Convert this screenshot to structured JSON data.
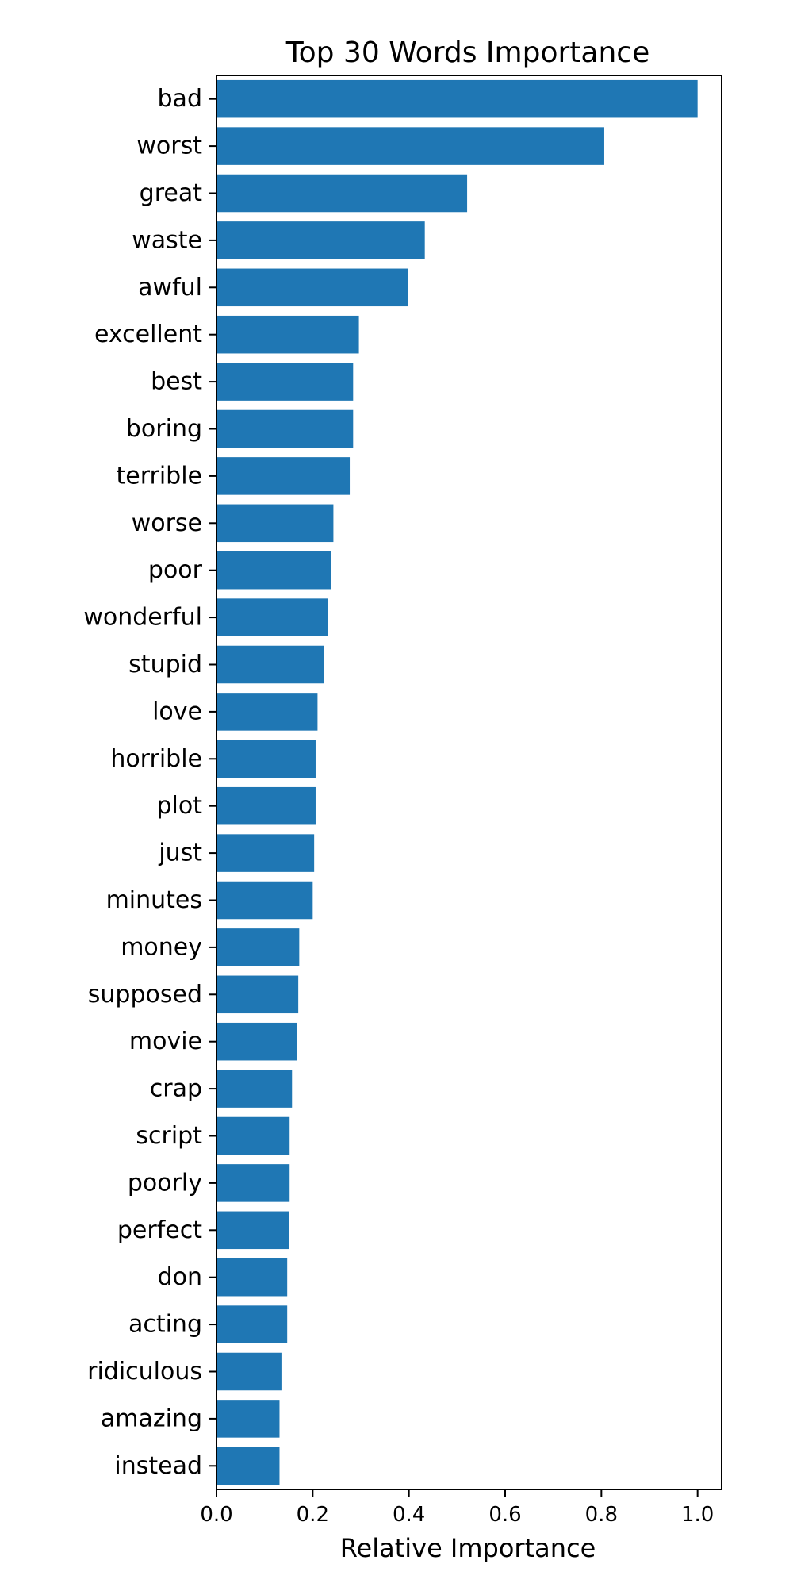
{
  "chart_data": {
    "type": "bar",
    "orientation": "horizontal",
    "title": "Top 30 Words Importance",
    "xlabel": "Relative Importance",
    "ylabel": "",
    "xlim": [
      0,
      1.05
    ],
    "xticks": [
      0.0,
      0.2,
      0.4,
      0.6,
      0.8,
      1.0
    ],
    "xtick_labels": [
      "0.0",
      "0.2",
      "0.4",
      "0.6",
      "0.8",
      "1.0"
    ],
    "grid": false,
    "bar_color": "#1f77b4",
    "categories": [
      "bad",
      "worst",
      "great",
      "waste",
      "awful",
      "excellent",
      "best",
      "boring",
      "terrible",
      "worse",
      "poor",
      "wonderful",
      "stupid",
      "love",
      "horrible",
      "plot",
      "just",
      "minutes",
      "money",
      "supposed",
      "movie",
      "crap",
      "script",
      "poorly",
      "perfect",
      "don",
      "acting",
      "ridiculous",
      "amazing",
      "instead"
    ],
    "values": [
      1.0,
      0.806,
      0.521,
      0.433,
      0.398,
      0.296,
      0.284,
      0.284,
      0.277,
      0.243,
      0.238,
      0.232,
      0.223,
      0.21,
      0.206,
      0.206,
      0.203,
      0.2,
      0.172,
      0.17,
      0.167,
      0.157,
      0.152,
      0.152,
      0.15,
      0.147,
      0.147,
      0.135,
      0.131,
      0.131
    ]
  }
}
